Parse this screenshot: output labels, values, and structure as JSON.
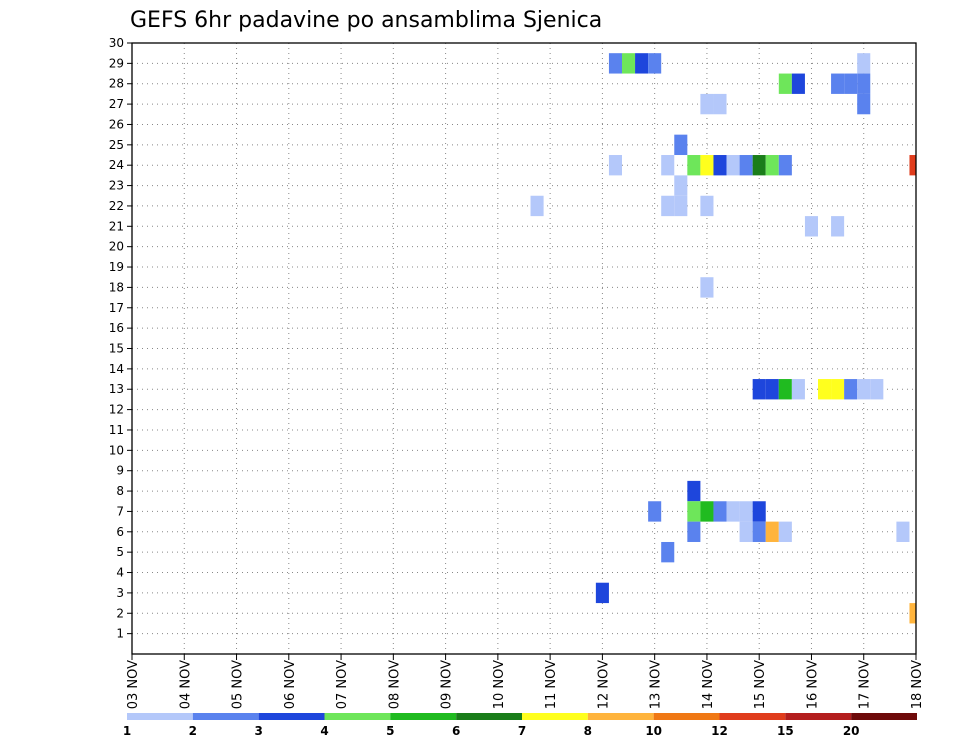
{
  "chart_data": {
    "type": "heatmap",
    "title": "GEFS 6hr padavine po ansamblima Sjenica",
    "xlabel": "",
    "ylabel": "",
    "x_tick_labels": [
      "03 NOV",
      "04 NOV",
      "05 NOV",
      "06 NOV",
      "07 NOV",
      "08 NOV",
      "09 NOV",
      "10 NOV",
      "11 NOV",
      "12 NOV",
      "13 NOV",
      "14 NOV",
      "15 NOV",
      "16 NOV",
      "17 NOV",
      "18 NOV"
    ],
    "x_range_days": [
      0,
      15
    ],
    "y_tick_labels": [
      "1",
      "2",
      "3",
      "4",
      "5",
      "6",
      "7",
      "8",
      "9",
      "10",
      "11",
      "12",
      "13",
      "14",
      "15",
      "16",
      "17",
      "18",
      "19",
      "20",
      "21",
      "22",
      "23",
      "24",
      "25",
      "26",
      "27",
      "28",
      "29",
      "30"
    ],
    "ylim": [
      0,
      30
    ],
    "grid": true,
    "colorbar": {
      "labels": [
        "1",
        "2",
        "3",
        "4",
        "5",
        "6",
        "7",
        "8",
        "10",
        "12",
        "15",
        "20"
      ],
      "colors": [
        "#b4c8fa",
        "#5a82ee",
        "#1e46dc",
        "#6ee65a",
        "#20bb20",
        "#1a7d1a",
        "#ffff1e",
        "#ffb43c",
        "#f07814",
        "#e03c1c",
        "#b41e1e",
        "#6e0a0a"
      ]
    },
    "cells": [
      {
        "x": 9.25,
        "y": 29,
        "v": 2
      },
      {
        "x": 9.5,
        "y": 29,
        "v": 4
      },
      {
        "x": 9.75,
        "y": 29,
        "v": 3
      },
      {
        "x": 10.0,
        "y": 29,
        "v": 2
      },
      {
        "x": 14.0,
        "y": 29,
        "v": 1
      },
      {
        "x": 12.5,
        "y": 28,
        "v": 4
      },
      {
        "x": 12.75,
        "y": 28,
        "v": 3
      },
      {
        "x": 13.5,
        "y": 28,
        "v": 2
      },
      {
        "x": 13.75,
        "y": 28,
        "v": 2
      },
      {
        "x": 14.0,
        "y": 28,
        "v": 2
      },
      {
        "x": 11.0,
        "y": 27,
        "v": 1
      },
      {
        "x": 11.25,
        "y": 27,
        "v": 1
      },
      {
        "x": 14.0,
        "y": 27,
        "v": 2
      },
      {
        "x": 10.5,
        "y": 25,
        "v": 2
      },
      {
        "x": 9.25,
        "y": 24,
        "v": 1
      },
      {
        "x": 10.25,
        "y": 24,
        "v": 1
      },
      {
        "x": 10.75,
        "y": 24,
        "v": 4
      },
      {
        "x": 11.0,
        "y": 24,
        "v": 7
      },
      {
        "x": 11.25,
        "y": 24,
        "v": 3
      },
      {
        "x": 11.5,
        "y": 24,
        "v": 1
      },
      {
        "x": 11.75,
        "y": 24,
        "v": 2
      },
      {
        "x": 12.0,
        "y": 24,
        "v": 6
      },
      {
        "x": 12.25,
        "y": 24,
        "v": 4
      },
      {
        "x": 12.5,
        "y": 24,
        "v": 2
      },
      {
        "x": 15.0,
        "y": 24,
        "v": 10
      },
      {
        "x": 10.5,
        "y": 23,
        "v": 1
      },
      {
        "x": 7.75,
        "y": 22,
        "v": 1
      },
      {
        "x": 10.25,
        "y": 22,
        "v": 1
      },
      {
        "x": 10.5,
        "y": 22,
        "v": 1
      },
      {
        "x": 11.0,
        "y": 22,
        "v": 1
      },
      {
        "x": 13.0,
        "y": 21,
        "v": 1
      },
      {
        "x": 13.5,
        "y": 21,
        "v": 1
      },
      {
        "x": 11.0,
        "y": 18,
        "v": 1
      },
      {
        "x": 12.0,
        "y": 13,
        "v": 3
      },
      {
        "x": 12.25,
        "y": 13,
        "v": 3
      },
      {
        "x": 12.5,
        "y": 13,
        "v": 5
      },
      {
        "x": 12.75,
        "y": 13,
        "v": 1
      },
      {
        "x": 13.25,
        "y": 13,
        "v": 7
      },
      {
        "x": 13.5,
        "y": 13,
        "v": 7
      },
      {
        "x": 13.75,
        "y": 13,
        "v": 2
      },
      {
        "x": 14.0,
        "y": 13,
        "v": 1
      },
      {
        "x": 14.25,
        "y": 13,
        "v": 1
      },
      {
        "x": 10.75,
        "y": 8,
        "v": 3
      },
      {
        "x": 10.0,
        "y": 7,
        "v": 2
      },
      {
        "x": 10.75,
        "y": 7,
        "v": 4
      },
      {
        "x": 11.0,
        "y": 7,
        "v": 5
      },
      {
        "x": 11.25,
        "y": 7,
        "v": 2
      },
      {
        "x": 11.5,
        "y": 7,
        "v": 1
      },
      {
        "x": 11.75,
        "y": 7,
        "v": 1
      },
      {
        "x": 12.0,
        "y": 7,
        "v": 3
      },
      {
        "x": 10.75,
        "y": 6,
        "v": 2
      },
      {
        "x": 11.75,
        "y": 6,
        "v": 1
      },
      {
        "x": 12.0,
        "y": 6,
        "v": 2
      },
      {
        "x": 12.25,
        "y": 6,
        "v": 8
      },
      {
        "x": 12.5,
        "y": 6,
        "v": 1
      },
      {
        "x": 14.75,
        "y": 6,
        "v": 1
      },
      {
        "x": 10.25,
        "y": 5,
        "v": 2
      },
      {
        "x": 9.0,
        "y": 3,
        "v": 3
      },
      {
        "x": 15.0,
        "y": 2,
        "v": 8
      }
    ]
  }
}
